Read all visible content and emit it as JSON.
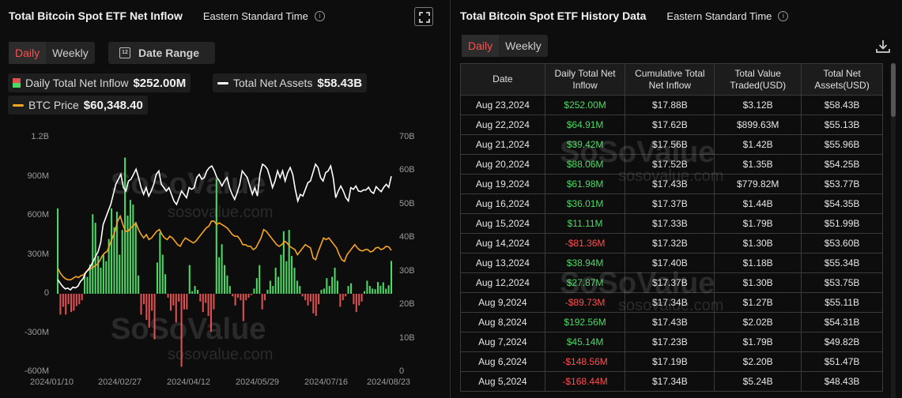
{
  "left_panel": {
    "title": "Total Bitcoin Spot ETF Net Inflow",
    "timezone": "Eastern Standard Time",
    "tabs": [
      {
        "label": "Daily",
        "active": true
      },
      {
        "label": "Weekly",
        "active": false
      }
    ],
    "date_range_label": "Date Range",
    "calendar_day": "12",
    "legend": {
      "inflow_label": "Daily Total Net Inflow",
      "inflow_value": "$252.00M",
      "assets_label": "Total Net Assets",
      "assets_value": "$58.43B",
      "btc_label": "BTC Price",
      "btc_value": "$60,348.40"
    },
    "watermark_brand": "SoSoValue",
    "watermark_url": "sosovalue.com"
  },
  "chart_data": {
    "type": "bar+line",
    "title": "Total Bitcoin Spot ETF Net Inflow",
    "left_axis": {
      "label": "Daily Total Net Inflow",
      "ticks": [
        "1.2B",
        "900M",
        "600M",
        "300M",
        "0",
        "-300M",
        "-600M"
      ],
      "range": [
        -600000000,
        1200000000
      ]
    },
    "right_axis": {
      "label": "Total Net Assets",
      "ticks": [
        "70B",
        "60B",
        "50B",
        "40B",
        "30B",
        "20B",
        "10B",
        "0"
      ],
      "range": [
        0,
        70000000000
      ]
    },
    "x_ticks": [
      "2024/01/10",
      "2024/02/27",
      "2024/04/12",
      "2024/05/29",
      "2024/07/16",
      "2024/08/23"
    ],
    "grid": false,
    "series": [
      {
        "name": "Daily Total Net Inflow",
        "type": "bar",
        "colors": {
          "positive": "#4cd964",
          "negative": "#e05050"
        },
        "values_millions": [
          655,
          -160,
          -100,
          -160,
          -80,
          -140,
          -130,
          -95,
          -80,
          -50,
          160,
          130,
          225,
          610,
          545,
          290,
          200,
          300,
          250,
          420,
          655,
          510,
          630,
          300,
          490,
          1045,
          600,
          720,
          685,
          550,
          140,
          -160,
          -80,
          -200,
          -260,
          -130,
          -350,
          240,
          470,
          300,
          150,
          -30,
          -130,
          -90,
          -220,
          -60,
          -560,
          -120,
          -120,
          220,
          20,
          60,
          30,
          -60,
          -140,
          -70,
          -170,
          -290,
          -120,
          880,
          280,
          380,
          220,
          140,
          60,
          -20,
          -90,
          -30,
          -50,
          -210,
          -50,
          -30,
          -10,
          40,
          120,
          220,
          -120,
          -50,
          30,
          100,
          60,
          200,
          130,
          300,
          480,
          250,
          490,
          290,
          200,
          100,
          60,
          -20,
          -50,
          -90,
          -60,
          -150,
          -170,
          -80,
          30,
          40,
          120,
          60,
          130,
          200,
          100,
          -100,
          -50,
          -20,
          60,
          80,
          -80,
          -140,
          -90,
          -60,
          20,
          100,
          60,
          40,
          35,
          90,
          62,
          88,
          39,
          65,
          252
        ]
      },
      {
        "name": "Total Net Assets",
        "type": "line",
        "color": "#ffffff",
        "values_billions": [
          27.6,
          26.5,
          25.5,
          24.8,
          25,
          24.5,
          25.3,
          25.1,
          25.6,
          27,
          27.8,
          29.5,
          30.5,
          31.5,
          33,
          34.5,
          36,
          38.5,
          44,
          46,
          48,
          50,
          53,
          56,
          57.5,
          59,
          55,
          54,
          57,
          57.5,
          59,
          60.5,
          58,
          55,
          53,
          55,
          52.5,
          54,
          56,
          59,
          60,
          56,
          55,
          54,
          55,
          53,
          51,
          50,
          52,
          54,
          53,
          52,
          55,
          54.5,
          55,
          58,
          59,
          57.5,
          58,
          60,
          61,
          61.5,
          60,
          58,
          57,
          55.5,
          57,
          58,
          55,
          53,
          51.5,
          53.5,
          56,
          60,
          59,
          58,
          55.5,
          53,
          55,
          52.5,
          59,
          62,
          61.5,
          60.5,
          58,
          55,
          57,
          60,
          58,
          60,
          57,
          59.5,
          61,
          59,
          54.5,
          51,
          53,
          52.5,
          54.5,
          56.5,
          57,
          59.5,
          62,
          61,
          58,
          57,
          59.5,
          60,
          61.5,
          58,
          52,
          54,
          55.5,
          54,
          52,
          51,
          55,
          54.5,
          55.5,
          54,
          53.8,
          54.3,
          54.3,
          55.1,
          53.8,
          53.3,
          55.3,
          54.5,
          53.8,
          55.1,
          56,
          55.1,
          58.4
        ]
      },
      {
        "name": "BTC Price",
        "type": "line",
        "color": "#f5a623",
        "right_axis_scaled": true,
        "values_billions_equiv": [
          31,
          29.5,
          28.5,
          27.8,
          27.5,
          27.5,
          28,
          28.5,
          28.2,
          28.8,
          29,
          30,
          30.5,
          31,
          31.5,
          32,
          33,
          34.5,
          35.5,
          36,
          38,
          40,
          42,
          45,
          46.5,
          44,
          42,
          42,
          43,
          43.5,
          44.5,
          42.5,
          41,
          40,
          41,
          39.5,
          40,
          41,
          42,
          42.5,
          41,
          40,
          39.5,
          40.5,
          40,
          39,
          38,
          37.5,
          39,
          40,
          39.5,
          39,
          38.5,
          39,
          40,
          41,
          42,
          43,
          43.5,
          45,
          45,
          44,
          44.5,
          44,
          43.5,
          43,
          42,
          41,
          40.5,
          40.5,
          39.5,
          38,
          38,
          37.5,
          37.5,
          36.5,
          37,
          38.5,
          40,
          42.5,
          42,
          41,
          40,
          39,
          38,
          37.5,
          38,
          39,
          38.5,
          37.5,
          37,
          36.5,
          35,
          36,
          37,
          38,
          37.5,
          37,
          34,
          33.5,
          36,
          38,
          40,
          39.5,
          40,
          39,
          38,
          37,
          35,
          33.5,
          33,
          35,
          36,
          37,
          38,
          37,
          36.3,
          36.1,
          36.5,
          36.5,
          35.8,
          36.1,
          37,
          37.2,
          36.5,
          36.8,
          37.5,
          37.3,
          36.3
        ]
      }
    ]
  },
  "right_panel": {
    "title": "Total Bitcoin Spot ETF History Data",
    "timezone": "Eastern Standard Time",
    "tabs": [
      {
        "label": "Daily",
        "active": true
      },
      {
        "label": "Weekly",
        "active": false
      }
    ],
    "columns": [
      "Date",
      "Daily Total Net Inflow",
      "Cumulative Total Net Inflow",
      "Total Value Traded(USD)",
      "Total Net Assets(USD)"
    ],
    "rows": [
      {
        "date": "Aug 23,2024",
        "inflow": "$252.00M",
        "sign": "pos",
        "cumulative": "$17.88B",
        "traded": "$3.12B",
        "assets": "$58.43B"
      },
      {
        "date": "Aug 22,2024",
        "inflow": "$64.91M",
        "sign": "pos",
        "cumulative": "$17.62B",
        "traded": "$899.63M",
        "assets": "$55.13B"
      },
      {
        "date": "Aug 21,2024",
        "inflow": "$39.42M",
        "sign": "pos",
        "cumulative": "$17.56B",
        "traded": "$1.42B",
        "assets": "$55.96B"
      },
      {
        "date": "Aug 20,2024",
        "inflow": "$88.06M",
        "sign": "pos",
        "cumulative": "$17.52B",
        "traded": "$1.35B",
        "assets": "$54.25B"
      },
      {
        "date": "Aug 19,2024",
        "inflow": "$61.98M",
        "sign": "pos",
        "cumulative": "$17.43B",
        "traded": "$779.82M",
        "assets": "$53.77B"
      },
      {
        "date": "Aug 16,2024",
        "inflow": "$36.01M",
        "sign": "pos",
        "cumulative": "$17.37B",
        "traded": "$1.44B",
        "assets": "$54.35B"
      },
      {
        "date": "Aug 15,2024",
        "inflow": "$11.11M",
        "sign": "pos",
        "cumulative": "$17.33B",
        "traded": "$1.79B",
        "assets": "$51.99B"
      },
      {
        "date": "Aug 14,2024",
        "inflow": "-$81.36M",
        "sign": "neg",
        "cumulative": "$17.32B",
        "traded": "$1.30B",
        "assets": "$53.60B"
      },
      {
        "date": "Aug 13,2024",
        "inflow": "$38.94M",
        "sign": "pos",
        "cumulative": "$17.40B",
        "traded": "$1.18B",
        "assets": "$55.34B"
      },
      {
        "date": "Aug 12,2024",
        "inflow": "$27.87M",
        "sign": "pos",
        "cumulative": "$17.37B",
        "traded": "$1.30B",
        "assets": "$53.75B"
      },
      {
        "date": "Aug 9,2024",
        "inflow": "-$89.73M",
        "sign": "neg",
        "cumulative": "$17.34B",
        "traded": "$1.27B",
        "assets": "$55.11B"
      },
      {
        "date": "Aug 8,2024",
        "inflow": "$192.56M",
        "sign": "pos",
        "cumulative": "$17.43B",
        "traded": "$2.02B",
        "assets": "$54.31B"
      },
      {
        "date": "Aug 7,2024",
        "inflow": "$45.14M",
        "sign": "pos",
        "cumulative": "$17.23B",
        "traded": "$1.79B",
        "assets": "$49.82B"
      },
      {
        "date": "Aug 6,2024",
        "inflow": "-$148.56M",
        "sign": "neg",
        "cumulative": "$17.19B",
        "traded": "$2.20B",
        "assets": "$51.47B"
      },
      {
        "date": "Aug 5,2024",
        "inflow": "-$168.44M",
        "sign": "neg",
        "cumulative": "$17.34B",
        "traded": "$5.24B",
        "assets": "$48.43B"
      }
    ]
  }
}
